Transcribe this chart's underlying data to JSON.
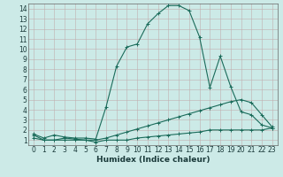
{
  "title": "",
  "xlabel": "Humidex (Indice chaleur)",
  "bg_color": "#cceae7",
  "grid_color": "#b8c8c4",
  "line_color": "#1a6b5a",
  "xlim": [
    -0.5,
    23.5
  ],
  "ylim": [
    0.5,
    14.5
  ],
  "xticks": [
    0,
    1,
    2,
    3,
    4,
    5,
    6,
    7,
    8,
    9,
    10,
    11,
    12,
    13,
    14,
    15,
    16,
    17,
    18,
    19,
    20,
    21,
    22,
    23
  ],
  "yticks": [
    1,
    2,
    3,
    4,
    5,
    6,
    7,
    8,
    9,
    10,
    11,
    12,
    13,
    14
  ],
  "line1_x": [
    0,
    1,
    2,
    3,
    4,
    5,
    6,
    7,
    8,
    9,
    10,
    11,
    12,
    13,
    14,
    15,
    16,
    17,
    18,
    19,
    20,
    21,
    22,
    23
  ],
  "line1_y": [
    1.6,
    1.2,
    1.5,
    1.3,
    1.2,
    1.2,
    1.1,
    4.3,
    8.3,
    10.2,
    10.5,
    12.5,
    13.5,
    14.3,
    14.3,
    13.8,
    11.2,
    6.2,
    9.3,
    6.3,
    3.8,
    3.5,
    2.5,
    2.2
  ],
  "line2_x": [
    0,
    1,
    2,
    3,
    4,
    5,
    6,
    7,
    8,
    9,
    10,
    11,
    12,
    13,
    14,
    15,
    16,
    17,
    18,
    19,
    20,
    21,
    22,
    23
  ],
  "line2_y": [
    1.2,
    1.0,
    1.0,
    1.0,
    1.0,
    1.0,
    1.0,
    1.2,
    1.5,
    1.8,
    2.1,
    2.4,
    2.7,
    3.0,
    3.3,
    3.6,
    3.9,
    4.2,
    4.5,
    4.8,
    5.0,
    4.7,
    3.5,
    2.3
  ],
  "line3_x": [
    0,
    1,
    2,
    3,
    4,
    5,
    6,
    7,
    8,
    9,
    10,
    11,
    12,
    13,
    14,
    15,
    16,
    17,
    18,
    19,
    20,
    21,
    22,
    23
  ],
  "line3_y": [
    1.5,
    1.0,
    1.0,
    1.2,
    1.1,
    1.0,
    0.8,
    1.0,
    1.0,
    1.0,
    1.2,
    1.3,
    1.4,
    1.5,
    1.6,
    1.7,
    1.8,
    2.0,
    2.0,
    2.0,
    2.0,
    2.0,
    2.0,
    2.2
  ],
  "font_color": "#1a3a3a",
  "xlabel_fontsize": 6.5,
  "tick_fontsize": 5.5
}
